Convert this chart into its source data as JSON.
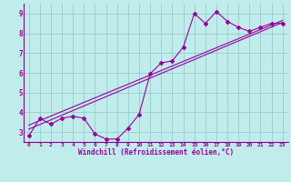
{
  "title": "",
  "xlabel": "Windchill (Refroidissement éolien,°C)",
  "ylabel": "",
  "bg_color": "#c0ecec",
  "grid_color": "#98cccc",
  "line_color": "#990099",
  "spine_color": "#880088",
  "xlim": [
    -0.5,
    23.5
  ],
  "ylim": [
    2.5,
    9.5
  ],
  "xticks": [
    0,
    1,
    2,
    3,
    4,
    5,
    6,
    7,
    8,
    9,
    10,
    11,
    12,
    13,
    14,
    15,
    16,
    17,
    18,
    19,
    20,
    21,
    22,
    23
  ],
  "yticks": [
    3,
    4,
    5,
    6,
    7,
    8,
    9
  ],
  "data_line": {
    "x": [
      0,
      1,
      2,
      3,
      4,
      5,
      6,
      7,
      8,
      9,
      10,
      11,
      12,
      13,
      14,
      15,
      16,
      17,
      18,
      19,
      20,
      21,
      22,
      23
    ],
    "y": [
      2.8,
      3.7,
      3.4,
      3.7,
      3.8,
      3.7,
      2.9,
      2.65,
      2.65,
      3.2,
      3.9,
      5.95,
      6.5,
      6.6,
      7.3,
      9.0,
      8.5,
      9.1,
      8.6,
      8.3,
      8.1,
      8.3,
      8.5,
      8.5
    ]
  },
  "line1": {
    "x": [
      0,
      23
    ],
    "y": [
      3.15,
      8.55
    ]
  },
  "line2": {
    "x": [
      0,
      23
    ],
    "y": [
      3.35,
      8.65
    ]
  }
}
